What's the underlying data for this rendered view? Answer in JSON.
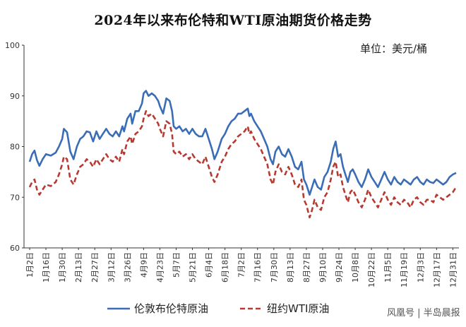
{
  "chart_data": {
    "type": "line",
    "title": "2024年以来布伦特和WTI原油期货价格走势",
    "unit_label": "单位：美元/桶",
    "ylim": [
      60,
      100
    ],
    "yticks": [
      60,
      70,
      80,
      90,
      100
    ],
    "x_ticks": [
      "1月2日",
      "1月16日",
      "1月30日",
      "2月13日",
      "2月27日",
      "3月12日",
      "3月26日",
      "4月9日",
      "4月23日",
      "5月7日",
      "5月21日",
      "6月4日",
      "6月18日",
      "7月2日",
      "7月16日",
      "7月30日",
      "8月13日",
      "8月27日",
      "9月10日",
      "9月24日",
      "10月8日",
      "10月22日",
      "11月5日",
      "11月19日",
      "12月3日",
      "12月17日",
      "12月31日"
    ],
    "x_index_max": 26,
    "series": [
      {
        "name": "伦敦布伦特原油",
        "color": "#3a6db5",
        "dashed": false,
        "points": [
          [
            0,
            77.0
          ],
          [
            0.15,
            78.5
          ],
          [
            0.3,
            79.2
          ],
          [
            0.45,
            77.3
          ],
          [
            0.6,
            76.2
          ],
          [
            0.8,
            77.5
          ],
          [
            1.0,
            78.5
          ],
          [
            1.3,
            78.2
          ],
          [
            1.6,
            78.8
          ],
          [
            1.8,
            80.0
          ],
          [
            2.0,
            81.5
          ],
          [
            2.1,
            83.5
          ],
          [
            2.3,
            82.8
          ],
          [
            2.5,
            79.0
          ],
          [
            2.7,
            77.5
          ],
          [
            2.9,
            80.0
          ],
          [
            3.1,
            81.5
          ],
          [
            3.3,
            82.0
          ],
          [
            3.5,
            83.0
          ],
          [
            3.7,
            82.8
          ],
          [
            3.9,
            81.0
          ],
          [
            4.1,
            83.0
          ],
          [
            4.3,
            81.5
          ],
          [
            4.5,
            82.5
          ],
          [
            4.7,
            83.5
          ],
          [
            4.9,
            82.5
          ],
          [
            5.1,
            82.0
          ],
          [
            5.3,
            83.0
          ],
          [
            5.5,
            82.0
          ],
          [
            5.7,
            84.0
          ],
          [
            5.8,
            83.0
          ],
          [
            6.0,
            85.5
          ],
          [
            6.2,
            86.5
          ],
          [
            6.3,
            84.5
          ],
          [
            6.5,
            87.0
          ],
          [
            6.7,
            87.0
          ],
          [
            6.9,
            88.5
          ],
          [
            7.0,
            90.5
          ],
          [
            7.15,
            91.0
          ],
          [
            7.3,
            90.0
          ],
          [
            7.5,
            90.5
          ],
          [
            7.7,
            90.0
          ],
          [
            7.9,
            89.0
          ],
          [
            8.0,
            88.0
          ],
          [
            8.2,
            86.5
          ],
          [
            8.4,
            89.5
          ],
          [
            8.6,
            89.0
          ],
          [
            8.75,
            87.0
          ],
          [
            8.85,
            84.0
          ],
          [
            9.0,
            83.5
          ],
          [
            9.2,
            84.0
          ],
          [
            9.4,
            83.0
          ],
          [
            9.6,
            83.5
          ],
          [
            9.8,
            82.5
          ],
          [
            10.0,
            83.5
          ],
          [
            10.2,
            82.5
          ],
          [
            10.4,
            82.0
          ],
          [
            10.6,
            82.0
          ],
          [
            10.8,
            83.5
          ],
          [
            11.0,
            81.5
          ],
          [
            11.2,
            79.5
          ],
          [
            11.35,
            77.5
          ],
          [
            11.55,
            79.0
          ],
          [
            11.8,
            81.5
          ],
          [
            12.0,
            82.5
          ],
          [
            12.2,
            84.0
          ],
          [
            12.4,
            85.0
          ],
          [
            12.6,
            85.5
          ],
          [
            12.8,
            86.5
          ],
          [
            13.0,
            86.5
          ],
          [
            13.2,
            87.0
          ],
          [
            13.4,
            87.5
          ],
          [
            13.5,
            86.0
          ],
          [
            13.6,
            86.5
          ],
          [
            13.8,
            85.0
          ],
          [
            14.0,
            84.0
          ],
          [
            14.2,
            83.0
          ],
          [
            14.4,
            81.5
          ],
          [
            14.6,
            80.0
          ],
          [
            14.8,
            77.5
          ],
          [
            14.95,
            76.5
          ],
          [
            15.1,
            79.0
          ],
          [
            15.3,
            80.0
          ],
          [
            15.5,
            78.5
          ],
          [
            15.7,
            78.0
          ],
          [
            15.9,
            79.5
          ],
          [
            16.1,
            78.0
          ],
          [
            16.3,
            76.0
          ],
          [
            16.5,
            75.5
          ],
          [
            16.7,
            77.0
          ],
          [
            16.85,
            73.5
          ],
          [
            17.0,
            72.5
          ],
          [
            17.2,
            70.5
          ],
          [
            17.35,
            72.0
          ],
          [
            17.5,
            73.5
          ],
          [
            17.7,
            72.0
          ],
          [
            17.9,
            71.5
          ],
          [
            18.1,
            74.0
          ],
          [
            18.3,
            75.0
          ],
          [
            18.5,
            77.0
          ],
          [
            18.65,
            79.5
          ],
          [
            18.8,
            81.0
          ],
          [
            18.95,
            78.0
          ],
          [
            19.1,
            78.5
          ],
          [
            19.25,
            76.0
          ],
          [
            19.4,
            74.5
          ],
          [
            19.55,
            73.0
          ],
          [
            19.7,
            75.0
          ],
          [
            19.85,
            75.5
          ],
          [
            20.0,
            74.5
          ],
          [
            20.2,
            73.0
          ],
          [
            20.4,
            72.0
          ],
          [
            20.6,
            73.5
          ],
          [
            20.8,
            75.5
          ],
          [
            21.0,
            74.0
          ],
          [
            21.2,
            73.0
          ],
          [
            21.4,
            72.0
          ],
          [
            21.6,
            73.5
          ],
          [
            21.8,
            75.0
          ],
          [
            22.0,
            73.5
          ],
          [
            22.2,
            72.5
          ],
          [
            22.4,
            74.0
          ],
          [
            22.6,
            73.0
          ],
          [
            22.8,
            72.5
          ],
          [
            23.0,
            73.5
          ],
          [
            23.2,
            73.0
          ],
          [
            23.4,
            72.5
          ],
          [
            23.6,
            73.5
          ],
          [
            23.8,
            74.0
          ],
          [
            24.0,
            73.0
          ],
          [
            24.2,
            72.5
          ],
          [
            24.4,
            73.5
          ],
          [
            24.6,
            73.0
          ],
          [
            24.8,
            72.8
          ],
          [
            25.0,
            73.5
          ],
          [
            25.2,
            73.0
          ],
          [
            25.4,
            72.5
          ],
          [
            25.6,
            73.0
          ],
          [
            25.8,
            74.0
          ],
          [
            26.0,
            74.5
          ],
          [
            26.2,
            74.8
          ]
        ]
      },
      {
        "name": "纽约WTI原油",
        "color": "#b73a32",
        "dashed": true,
        "points": [
          [
            0,
            72.0
          ],
          [
            0.15,
            73.0
          ],
          [
            0.3,
            73.5
          ],
          [
            0.45,
            71.5
          ],
          [
            0.6,
            70.5
          ],
          [
            0.8,
            71.5
          ],
          [
            1.0,
            72.5
          ],
          [
            1.3,
            72.2
          ],
          [
            1.6,
            73.0
          ],
          [
            1.8,
            74.5
          ],
          [
            2.0,
            76.5
          ],
          [
            2.1,
            78.0
          ],
          [
            2.3,
            77.5
          ],
          [
            2.5,
            73.5
          ],
          [
            2.7,
            72.5
          ],
          [
            2.9,
            74.5
          ],
          [
            3.1,
            76.0
          ],
          [
            3.3,
            76.5
          ],
          [
            3.5,
            77.5
          ],
          [
            3.7,
            77.0
          ],
          [
            3.9,
            76.0
          ],
          [
            4.1,
            77.5
          ],
          [
            4.3,
            76.5
          ],
          [
            4.5,
            77.5
          ],
          [
            4.7,
            78.5
          ],
          [
            4.9,
            77.5
          ],
          [
            5.1,
            77.0
          ],
          [
            5.3,
            78.0
          ],
          [
            5.5,
            77.0
          ],
          [
            5.7,
            79.5
          ],
          [
            5.8,
            78.5
          ],
          [
            6.0,
            81.0
          ],
          [
            6.2,
            82.0
          ],
          [
            6.3,
            80.5
          ],
          [
            6.5,
            82.5
          ],
          [
            6.7,
            83.0
          ],
          [
            6.9,
            84.0
          ],
          [
            7.0,
            85.5
          ],
          [
            7.15,
            87.0
          ],
          [
            7.3,
            86.0
          ],
          [
            7.5,
            86.5
          ],
          [
            7.7,
            85.5
          ],
          [
            7.9,
            84.5
          ],
          [
            8.0,
            83.5
          ],
          [
            8.2,
            82.0
          ],
          [
            8.4,
            85.0
          ],
          [
            8.6,
            84.5
          ],
          [
            8.75,
            82.5
          ],
          [
            8.85,
            79.0
          ],
          [
            9.0,
            78.5
          ],
          [
            9.2,
            79.0
          ],
          [
            9.4,
            78.0
          ],
          [
            9.6,
            78.5
          ],
          [
            9.8,
            77.5
          ],
          [
            10.0,
            78.5
          ],
          [
            10.2,
            77.5
          ],
          [
            10.4,
            77.0
          ],
          [
            10.6,
            76.5
          ],
          [
            10.8,
            78.0
          ],
          [
            11.0,
            76.0
          ],
          [
            11.2,
            74.0
          ],
          [
            11.35,
            73.0
          ],
          [
            11.55,
            74.5
          ],
          [
            11.8,
            77.0
          ],
          [
            12.0,
            78.0
          ],
          [
            12.2,
            79.5
          ],
          [
            12.4,
            80.5
          ],
          [
            12.6,
            81.0
          ],
          [
            12.8,
            82.0
          ],
          [
            13.0,
            82.5
          ],
          [
            13.2,
            83.0
          ],
          [
            13.4,
            84.0
          ],
          [
            13.5,
            82.5
          ],
          [
            13.6,
            83.0
          ],
          [
            13.8,
            81.5
          ],
          [
            14.0,
            80.5
          ],
          [
            14.2,
            79.5
          ],
          [
            14.4,
            78.0
          ],
          [
            14.6,
            76.5
          ],
          [
            14.8,
            73.5
          ],
          [
            14.95,
            72.5
          ],
          [
            15.1,
            75.0
          ],
          [
            15.3,
            76.5
          ],
          [
            15.5,
            75.0
          ],
          [
            15.7,
            74.5
          ],
          [
            15.9,
            76.0
          ],
          [
            16.1,
            74.5
          ],
          [
            16.3,
            72.5
          ],
          [
            16.5,
            72.0
          ],
          [
            16.7,
            73.5
          ],
          [
            16.85,
            69.5
          ],
          [
            17.0,
            68.5
          ],
          [
            17.2,
            66.0
          ],
          [
            17.35,
            67.5
          ],
          [
            17.5,
            69.5
          ],
          [
            17.7,
            68.0
          ],
          [
            17.9,
            67.5
          ],
          [
            18.1,
            70.0
          ],
          [
            18.3,
            71.0
          ],
          [
            18.5,
            73.5
          ],
          [
            18.65,
            76.0
          ],
          [
            18.8,
            77.0
          ],
          [
            18.95,
            74.0
          ],
          [
            19.1,
            74.5
          ],
          [
            19.25,
            72.0
          ],
          [
            19.4,
            70.5
          ],
          [
            19.55,
            69.0
          ],
          [
            19.7,
            71.0
          ],
          [
            19.85,
            71.5
          ],
          [
            20.0,
            70.5
          ],
          [
            20.2,
            69.0
          ],
          [
            20.4,
            68.0
          ],
          [
            20.6,
            69.5
          ],
          [
            20.8,
            71.5
          ],
          [
            21.0,
            70.0
          ],
          [
            21.2,
            69.0
          ],
          [
            21.4,
            68.0
          ],
          [
            21.6,
            69.5
          ],
          [
            21.8,
            71.0
          ],
          [
            22.0,
            69.5
          ],
          [
            22.2,
            68.5
          ],
          [
            22.4,
            70.0
          ],
          [
            22.6,
            69.0
          ],
          [
            22.8,
            68.5
          ],
          [
            23.0,
            69.5
          ],
          [
            23.2,
            69.0
          ],
          [
            23.4,
            68.0
          ],
          [
            23.6,
            69.5
          ],
          [
            23.8,
            70.0
          ],
          [
            24.0,
            69.0
          ],
          [
            24.2,
            68.5
          ],
          [
            24.4,
            69.5
          ],
          [
            24.6,
            69.5
          ],
          [
            24.8,
            69.0
          ],
          [
            25.0,
            70.5
          ],
          [
            25.2,
            70.0
          ],
          [
            25.4,
            69.5
          ],
          [
            25.6,
            70.0
          ],
          [
            25.8,
            70.5
          ],
          [
            26.0,
            71.0
          ],
          [
            26.2,
            72.0
          ]
        ]
      }
    ],
    "legend": [
      "伦敦布伦特原油",
      "纽约WTI原油"
    ]
  },
  "watermark": "风凰号 | 半岛晨报"
}
